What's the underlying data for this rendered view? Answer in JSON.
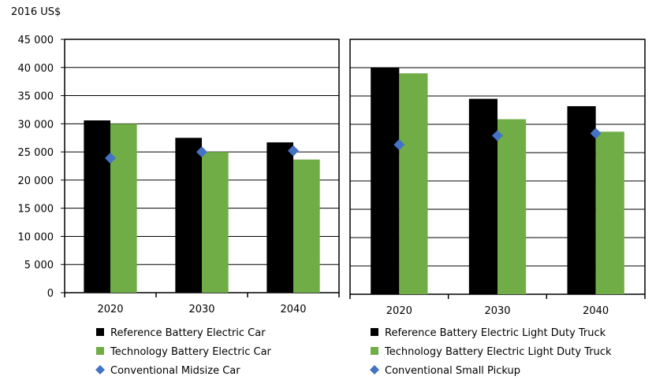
{
  "chart_data": [
    {
      "type": "bar",
      "ylabel": "2016 US$",
      "categories": [
        "2020",
        "2030",
        "2040"
      ],
      "ylim": [
        0,
        45000
      ],
      "yticks": [
        0,
        5000,
        10000,
        15000,
        20000,
        25000,
        30000,
        35000,
        40000,
        45000
      ],
      "ytick_labels": [
        "0",
        "5 000",
        "10 000",
        "15 000",
        "20 000",
        "25 000",
        "30 000",
        "35 000",
        "40 000",
        "45 000"
      ],
      "grid": true,
      "legend_placement": "bottom",
      "series": [
        {
          "name": "Reference Battery Electric Car",
          "kind": "bar",
          "color": "#000000",
          "values": [
            30600,
            27500,
            26700
          ]
        },
        {
          "name": "Technology Battery Electric Car",
          "kind": "bar",
          "color": "#70ad47",
          "values": [
            30000,
            25000,
            23650
          ]
        },
        {
          "name": "Conventional Midsize Car",
          "kind": "marker",
          "marker": "diamond",
          "color": "#4472c4",
          "values": [
            23900,
            25000,
            25200
          ]
        }
      ]
    },
    {
      "type": "bar",
      "categories": [
        "2020",
        "2030",
        "2040"
      ],
      "ylim": [
        0,
        45000
      ],
      "grid": true,
      "legend_placement": "bottom",
      "series": [
        {
          "name": "Reference Battery Electric Light Duty Truck",
          "kind": "bar",
          "color": "#000000",
          "values": [
            40000,
            34500,
            33200
          ]
        },
        {
          "name": "Technology Battery Electric Light Duty Truck",
          "kind": "bar",
          "color": "#70ad47",
          "values": [
            39000,
            30900,
            28700
          ]
        },
        {
          "name": "Conventional Small Pickup",
          "kind": "marker",
          "marker": "diamond",
          "color": "#4472c4",
          "values": [
            26400,
            28000,
            28400
          ]
        }
      ]
    }
  ]
}
